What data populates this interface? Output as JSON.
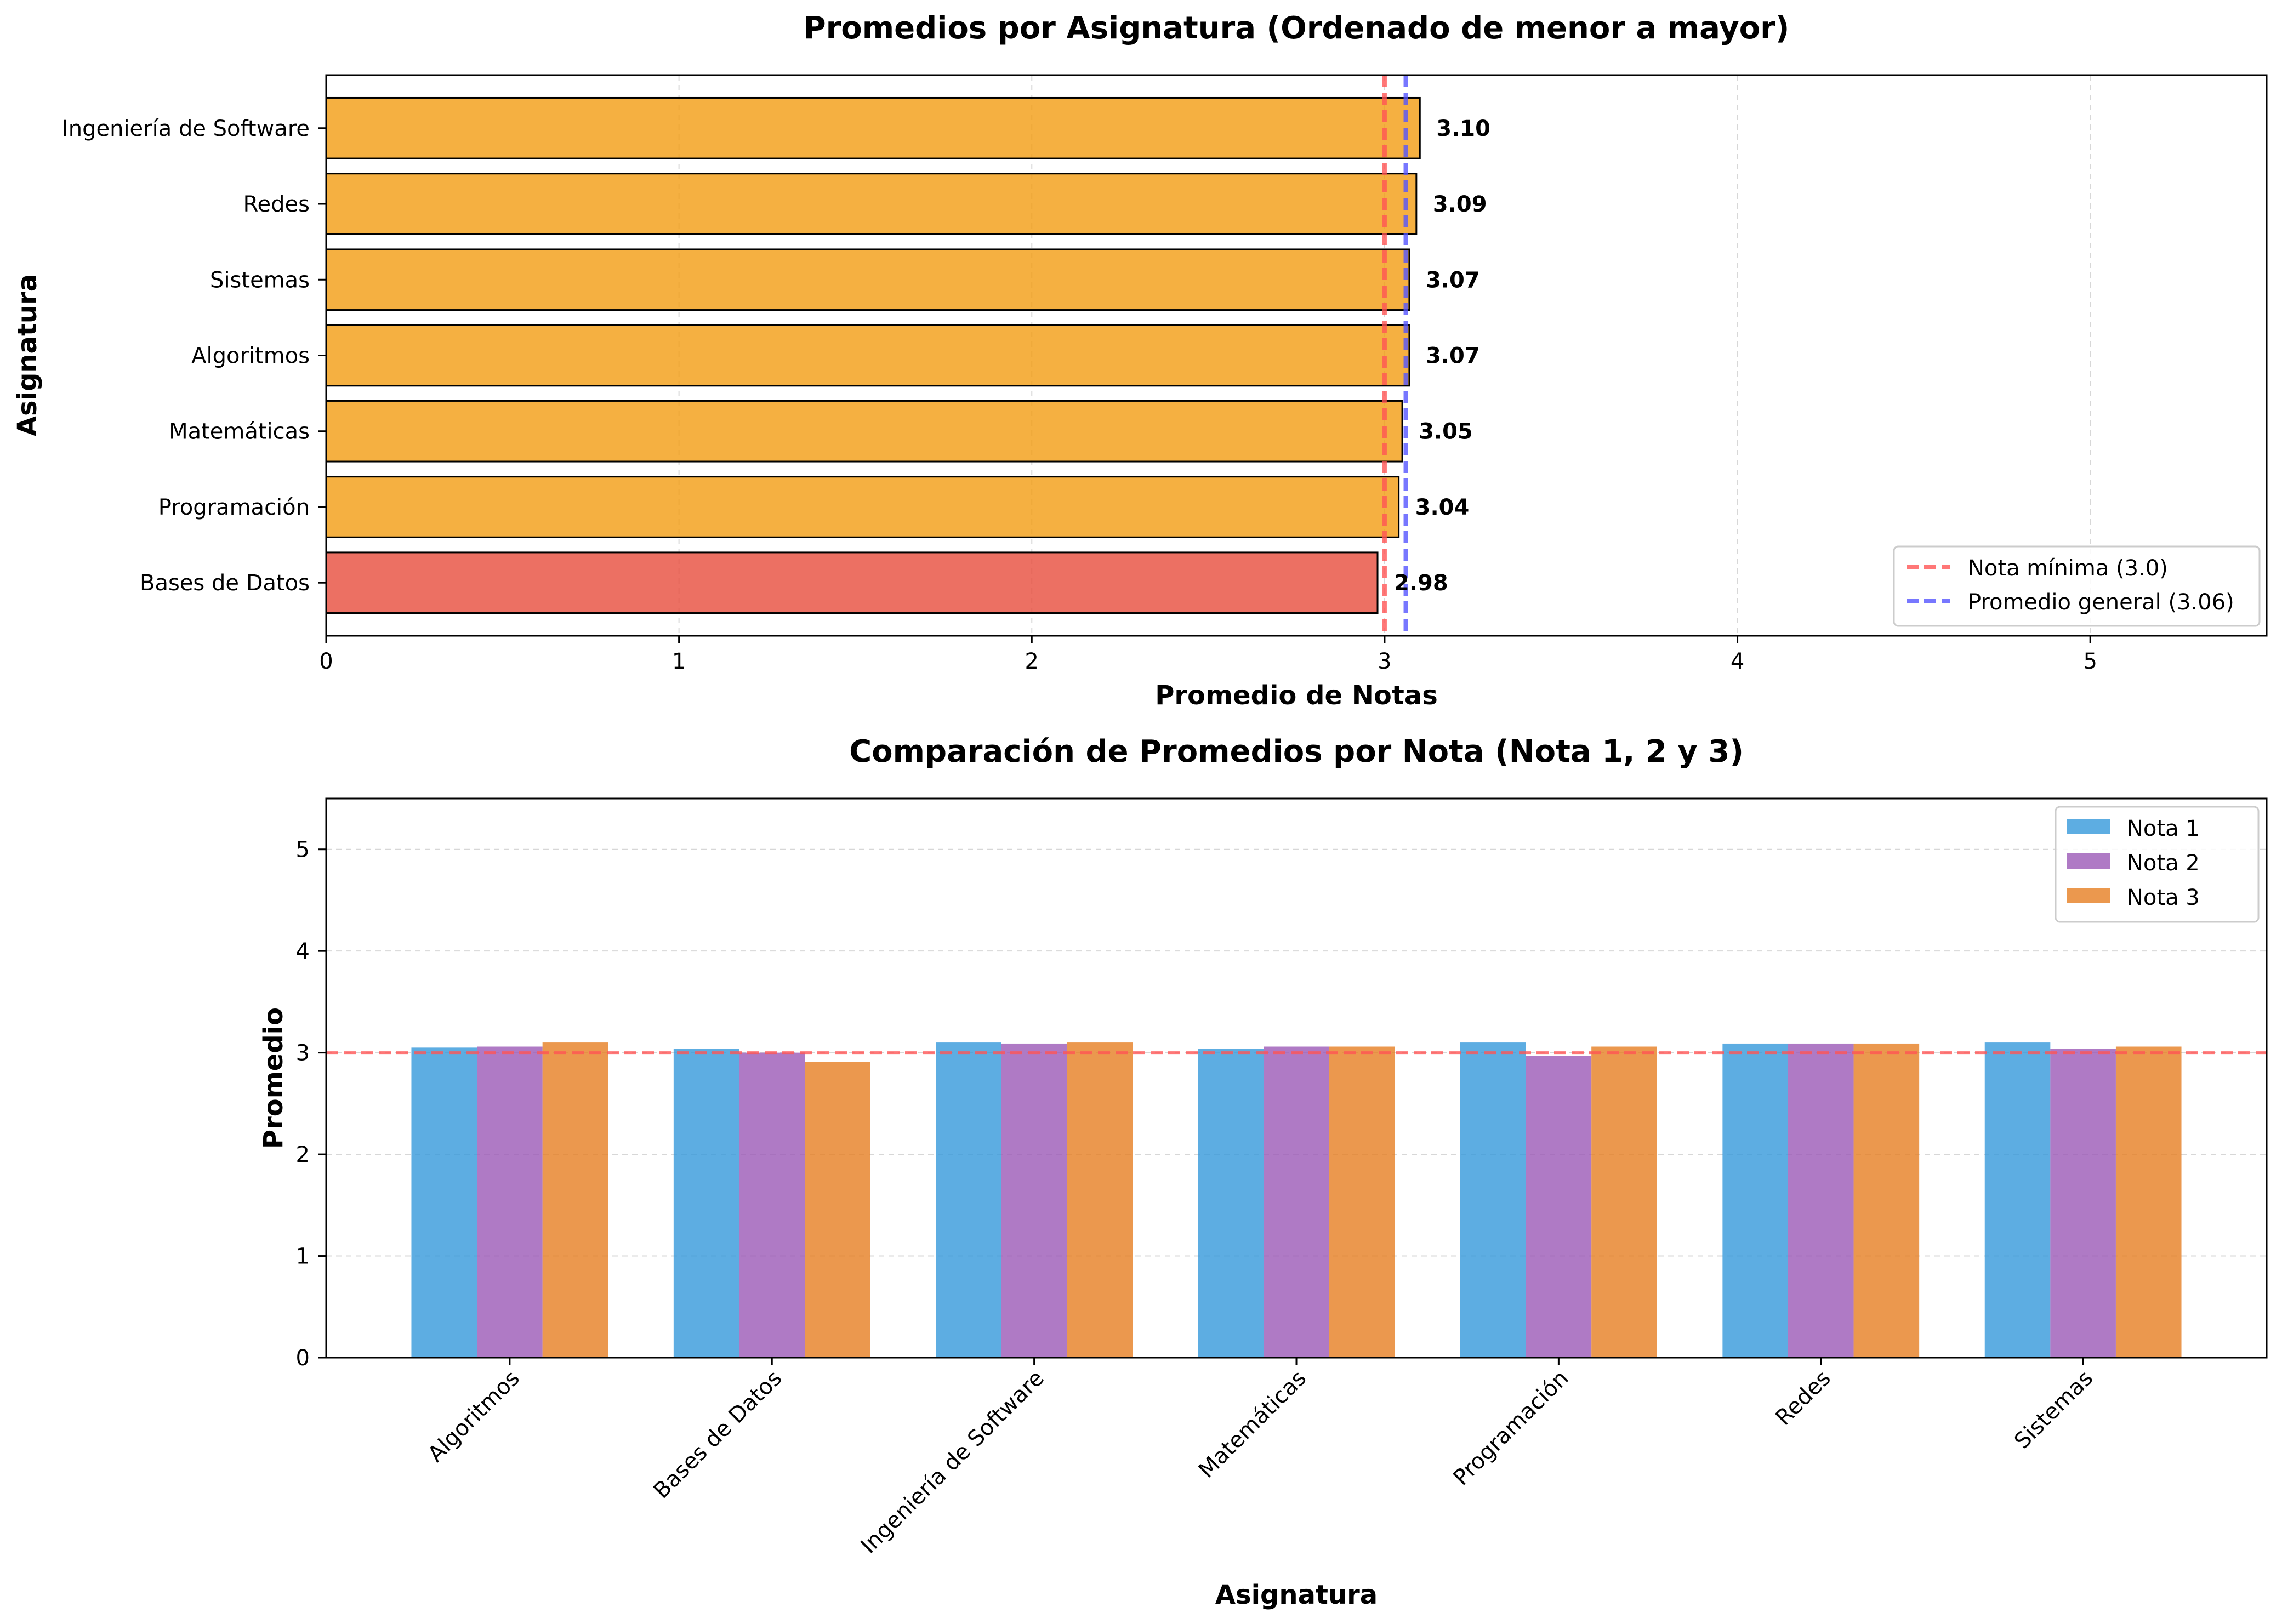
{
  "chart_data": [
    {
      "type": "bar",
      "orientation": "horizontal",
      "title": "Promedios por Asignatura (Ordenado de menor a mayor)",
      "xlabel": "Promedio de Notas",
      "ylabel": "Asignatura",
      "xlim": [
        0,
        5.5
      ],
      "xticks": [
        "0",
        "1",
        "2",
        "3",
        "4",
        "5"
      ],
      "grid": "x",
      "categories": [
        "Bases de Datos",
        "Programación",
        "Matemáticas",
        "Algoritmos",
        "Sistemas",
        "Redes",
        "Ingeniería de Software"
      ],
      "values": [
        2.98,
        3.04,
        3.05,
        3.07,
        3.07,
        3.09,
        3.1
      ],
      "value_labels": [
        "2.98",
        "3.04",
        "3.05",
        "3.07",
        "3.07",
        "3.09",
        "3.10"
      ],
      "bar_colors": [
        "#e74c3c",
        "#f39c12",
        "#f39c12",
        "#f39c12",
        "#f39c12",
        "#f39c12",
        "#f39c12"
      ],
      "reference_lines": [
        {
          "label": "Nota mínima (3.0)",
          "value": 3.0,
          "color": "#ff5555",
          "style": "dashed"
        },
        {
          "label": "Promedio general (3.06)",
          "value": 3.06,
          "color": "#5555ff",
          "style": "dashed"
        }
      ],
      "legend": {
        "placement": "lower-right",
        "entries": [
          "Nota mínima (3.0)",
          "Promedio general (3.06)"
        ]
      }
    },
    {
      "type": "bar",
      "orientation": "vertical",
      "title": "Comparación de Promedios por Nota (Nota 1, 2 y 3)",
      "xlabel": "Asignatura",
      "ylabel": "Promedio",
      "ylim": [
        0,
        5.5
      ],
      "yticks": [
        "0",
        "1",
        "2",
        "3",
        "4",
        "5"
      ],
      "grid": "y",
      "categories": [
        "Algoritmos",
        "Bases de Datos",
        "Ingeniería de Software",
        "Matemáticas",
        "Programación",
        "Redes",
        "Sistemas"
      ],
      "series": [
        {
          "name": "Nota 1",
          "color": "#3498db",
          "values": [
            3.05,
            3.04,
            3.1,
            3.04,
            3.1,
            3.09,
            3.1
          ]
        },
        {
          "name": "Nota 2",
          "color": "#9b59b6",
          "values": [
            3.06,
            3.0,
            3.09,
            3.06,
            2.97,
            3.09,
            3.04
          ]
        },
        {
          "name": "Nota 3",
          "color": "#e67e22",
          "values": [
            3.1,
            2.91,
            3.1,
            3.06,
            3.06,
            3.09,
            3.06
          ]
        }
      ],
      "reference_lines": [
        {
          "value": 3.0,
          "color": "#ff5555",
          "style": "dashed"
        }
      ],
      "legend": {
        "placement": "top-right",
        "entries": [
          "Nota 1",
          "Nota 2",
          "Nota 3"
        ]
      }
    }
  ]
}
